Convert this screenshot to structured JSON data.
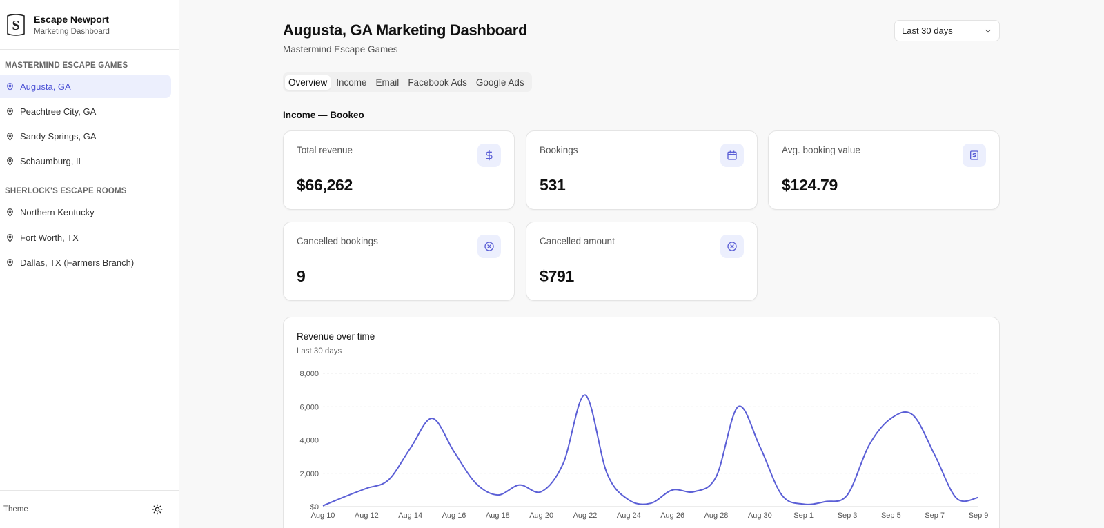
{
  "sidebar": {
    "brand_name": "Escape Newport",
    "brand_sub": "Marketing Dashboard",
    "groups": [
      {
        "label": "Mastermind Escape Games",
        "items": [
          "Augusta, GA",
          "Peachtree City, GA",
          "Sandy Springs, GA",
          "Schaumburg, IL"
        ]
      },
      {
        "label": "Sherlock's Escape Rooms",
        "items": [
          "Northern Kentucky",
          "Fort Worth, TX",
          "Dallas, TX (Farmers Branch)"
        ]
      }
    ],
    "active_item": "Augusta, GA",
    "theme_label": "Theme"
  },
  "header": {
    "title": "Augusta, GA Marketing Dashboard",
    "subtitle": "Mastermind Escape Games",
    "range": "Last 30 days"
  },
  "tabs": [
    "Overview",
    "Income",
    "Email",
    "Facebook Ads",
    "Google Ads"
  ],
  "active_tab": "Overview",
  "section": {
    "title": "Income — Bookeo"
  },
  "cards": [
    {
      "label": "Total revenue",
      "value": "$66,262",
      "icon": "dollar-icon"
    },
    {
      "label": "Bookings",
      "value": "531",
      "icon": "calendar-icon"
    },
    {
      "label": "Avg. booking value",
      "value": "$124.79",
      "icon": "receipt-icon"
    },
    {
      "label": "Cancelled bookings",
      "value": "9",
      "icon": "x-circle-icon"
    },
    {
      "label": "Cancelled amount",
      "value": "$791",
      "icon": "x-circle-icon"
    }
  ],
  "colors": {
    "accent": "#5b5fd6",
    "active_bg": "#eceffd"
  },
  "chart_data": {
    "type": "line",
    "title": "Revenue over time",
    "subtitle": "Last 30 days",
    "ylim": [
      0,
      8000
    ],
    "y_ticks": [
      "$0",
      "2,000",
      "4,000",
      "6,000",
      "8,000"
    ],
    "x_ticks": [
      "Aug 10",
      "Aug 12",
      "Aug 14",
      "Aug 16",
      "Aug 18",
      "Aug 20",
      "Aug 22",
      "Aug 24",
      "Aug 26",
      "Aug 28",
      "Aug 30",
      "Sep 1",
      "Sep 3",
      "Sep 5",
      "Sep 7",
      "Sep 9"
    ],
    "x": [
      "Aug 10",
      "Aug 11",
      "Aug 12",
      "Aug 13",
      "Aug 14",
      "Aug 15",
      "Aug 16",
      "Aug 17",
      "Aug 18",
      "Aug 19",
      "Aug 20",
      "Aug 21",
      "Aug 22",
      "Aug 23",
      "Aug 24",
      "Aug 25",
      "Aug 26",
      "Aug 27",
      "Aug 28",
      "Aug 29",
      "Aug 30",
      "Aug 31",
      "Sep 1",
      "Sep 2",
      "Sep 3",
      "Sep 4",
      "Sep 5",
      "Sep 6",
      "Sep 7",
      "Sep 8",
      "Sep 9"
    ],
    "series": [
      {
        "values": [
          50,
          600,
          1100,
          1600,
          3500,
          5300,
          3300,
          1400,
          700,
          1300,
          900,
          2600,
          6700,
          2000,
          400,
          200,
          1000,
          900,
          1800,
          6000,
          3600,
          700,
          150,
          300,
          700,
          3700,
          5300,
          5500,
          3100,
          500,
          550
        ]
      }
    ],
    "grid": true
  }
}
